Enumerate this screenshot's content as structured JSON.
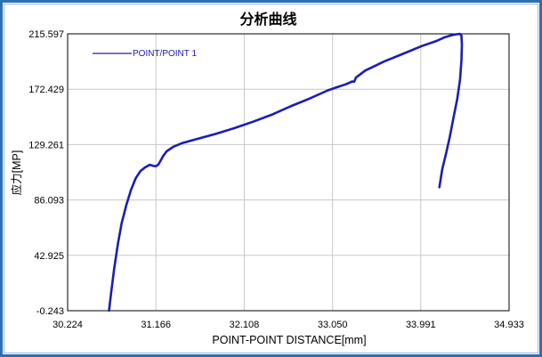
{
  "chart_data": {
    "type": "line",
    "title": "分析曲线",
    "xlabel": "POINT-POINT DISTANCE[mm]",
    "ylabel": "应力[MP]",
    "xlim": [
      30.224,
      34.933
    ],
    "ylim": [
      -0.243,
      215.597
    ],
    "x_ticks": [
      "30.224",
      "31.166",
      "32.108",
      "33.050",
      "33.991",
      "34.933"
    ],
    "y_ticks": [
      "-0.243",
      "42.925",
      "86.093",
      "129.261",
      "172.429",
      "215.597"
    ],
    "grid": true,
    "legend_position": "top-left",
    "series": [
      {
        "name": "POINT/POINT 1",
        "color": "#1c1cb5",
        "x": [
          30.665,
          30.69,
          30.72,
          30.76,
          30.8,
          30.85,
          30.9,
          30.95,
          31.0,
          31.05,
          31.1,
          31.14,
          31.166,
          31.19,
          31.21,
          31.24,
          31.28,
          31.35,
          31.45,
          31.6,
          31.8,
          32.0,
          32.2,
          32.4,
          32.6,
          32.8,
          33.0,
          33.1,
          33.2,
          33.26,
          33.28,
          33.3,
          33.4,
          33.6,
          33.8,
          34.0,
          34.15,
          34.25,
          34.33,
          34.38,
          34.41,
          34.425,
          34.43,
          34.425,
          34.41,
          34.38,
          34.34,
          34.3,
          34.26,
          34.22,
          34.19
        ],
        "y": [
          -0.2,
          15,
          32,
          52,
          68,
          82,
          94,
          103,
          108.5,
          111.5,
          113.5,
          112.6,
          112.4,
          113.5,
          116,
          120,
          124,
          127.5,
          130.5,
          133.5,
          137.5,
          142,
          147,
          152.5,
          159,
          165,
          171.5,
          174,
          176.5,
          178.5,
          178.2,
          181.5,
          187,
          194,
          200,
          206,
          209.8,
          213,
          214.7,
          215.3,
          215.5,
          214.2,
          207,
          195,
          180,
          165,
          150,
          135,
          122,
          110,
          96
        ]
      }
    ]
  }
}
